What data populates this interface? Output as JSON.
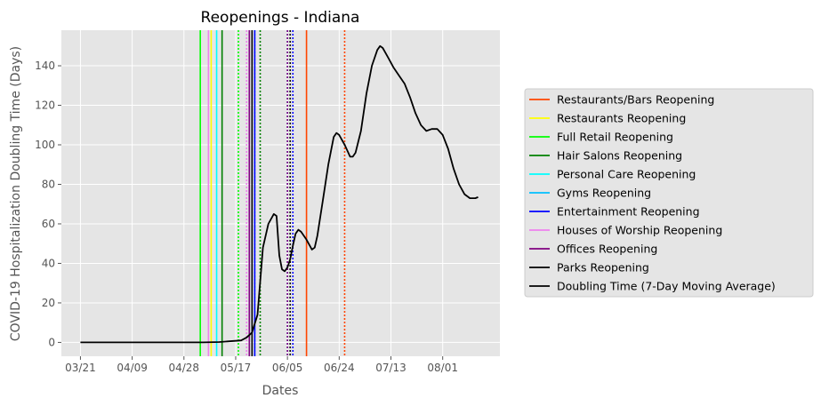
{
  "chart_data": {
    "type": "line",
    "title": "Reopenings - Indiana",
    "xlabel": "Dates",
    "ylabel": "COVID-19 Hospitalization Doubling Time (Days)",
    "x_range": [
      "2020-03-14",
      "2020-08-22"
    ],
    "ylim": [
      -7,
      158
    ],
    "y_ticks": [
      0,
      20,
      40,
      60,
      80,
      100,
      120,
      140
    ],
    "x_ticks": [
      {
        "date": "2020-03-21",
        "label": "03/21"
      },
      {
        "date": "2020-04-09",
        "label": "04/09"
      },
      {
        "date": "2020-04-28",
        "label": "04/28"
      },
      {
        "date": "2020-05-17",
        "label": "05/17"
      },
      {
        "date": "2020-06-05",
        "label": "06/05"
      },
      {
        "date": "2020-06-24",
        "label": "06/24"
      },
      {
        "date": "2020-07-13",
        "label": "07/13"
      },
      {
        "date": "2020-08-01",
        "label": "08/01"
      }
    ],
    "grid": true,
    "legend_position": "right, outside",
    "background": "#e5e5e5",
    "reopening_events": [
      {
        "name": "Restaurants/Bars Reopening",
        "color": "#ff4500",
        "solid": "2020-06-12",
        "dotted": "2020-06-26"
      },
      {
        "name": "Restaurants Reopening",
        "color": "#ffff00",
        "solid": "2020-05-08",
        "dotted": "2020-05-22"
      },
      {
        "name": "Full Retail Reopening",
        "color": "#00ff00",
        "solid": "2020-05-04",
        "dotted": "2020-05-18"
      },
      {
        "name": "Hair Salons Reopening",
        "color": "#008000",
        "solid": "2020-05-12",
        "dotted": "2020-05-26"
      },
      {
        "name": "Personal Care Reopening",
        "color": "#00ffff",
        "solid": "2020-05-10",
        "dotted": "2020-05-24"
      },
      {
        "name": "Gyms Reopening",
        "color": "#00bfff",
        "solid": "2020-05-22",
        "dotted": "2020-06-05"
      },
      {
        "name": "Entertainment Reopening",
        "color": "#0000ff",
        "solid": "2020-05-24",
        "dotted": "2020-06-07"
      },
      {
        "name": "Houses of Worship Reopening",
        "color": "#ee82ee",
        "solid": "2020-05-07",
        "dotted": "2020-05-21"
      },
      {
        "name": "Offices Reopening",
        "color": "#800080",
        "solid": "2020-05-22",
        "dotted": "2020-06-05"
      },
      {
        "name": "Parks Reopening",
        "color": "#000000",
        "solid": "2020-05-23",
        "dotted": "2020-06-06"
      }
    ],
    "series": [
      {
        "name": "Doubling Time (7-Day Moving Average)",
        "color": "#000000",
        "points": [
          [
            "2020-03-21",
            0
          ],
          [
            "2020-04-15",
            0
          ],
          [
            "2020-05-05",
            0
          ],
          [
            "2020-05-11",
            0.2
          ],
          [
            "2020-05-19",
            1
          ],
          [
            "2020-05-21",
            2.5
          ],
          [
            "2020-05-23",
            5
          ],
          [
            "2020-05-25",
            14
          ],
          [
            "2020-05-27",
            48
          ],
          [
            "2020-05-29",
            60
          ],
          [
            "2020-05-31",
            65
          ],
          [
            "2020-06-01",
            64
          ],
          [
            "2020-06-02",
            44
          ],
          [
            "2020-06-03",
            37
          ],
          [
            "2020-06-04",
            36
          ],
          [
            "2020-06-05",
            38
          ],
          [
            "2020-06-06",
            42
          ],
          [
            "2020-06-07",
            49
          ],
          [
            "2020-06-08",
            55
          ],
          [
            "2020-06-09",
            57
          ],
          [
            "2020-06-10",
            56
          ],
          [
            "2020-06-12",
            52
          ],
          [
            "2020-06-14",
            47
          ],
          [
            "2020-06-15",
            48
          ],
          [
            "2020-06-16",
            54
          ],
          [
            "2020-06-18",
            72
          ],
          [
            "2020-06-20",
            90
          ],
          [
            "2020-06-22",
            104
          ],
          [
            "2020-06-23",
            106
          ],
          [
            "2020-06-24",
            105
          ],
          [
            "2020-06-26",
            100
          ],
          [
            "2020-06-28",
            94
          ],
          [
            "2020-06-29",
            94
          ],
          [
            "2020-06-30",
            96
          ],
          [
            "2020-07-02",
            107
          ],
          [
            "2020-07-04",
            126
          ],
          [
            "2020-07-06",
            140
          ],
          [
            "2020-07-08",
            148
          ],
          [
            "2020-07-09",
            150
          ],
          [
            "2020-07-10",
            149
          ],
          [
            "2020-07-12",
            144
          ],
          [
            "2020-07-14",
            139
          ],
          [
            "2020-07-16",
            135
          ],
          [
            "2020-07-18",
            131
          ],
          [
            "2020-07-20",
            124
          ],
          [
            "2020-07-22",
            116
          ],
          [
            "2020-07-24",
            110
          ],
          [
            "2020-07-26",
            107
          ],
          [
            "2020-07-28",
            108
          ],
          [
            "2020-07-30",
            108
          ],
          [
            "2020-08-01",
            105
          ],
          [
            "2020-08-03",
            98
          ],
          [
            "2020-08-05",
            88
          ],
          [
            "2020-08-07",
            80
          ],
          [
            "2020-08-09",
            75
          ],
          [
            "2020-08-11",
            73
          ],
          [
            "2020-08-13",
            73
          ],
          [
            "2020-08-14",
            73.5
          ]
        ]
      }
    ]
  }
}
